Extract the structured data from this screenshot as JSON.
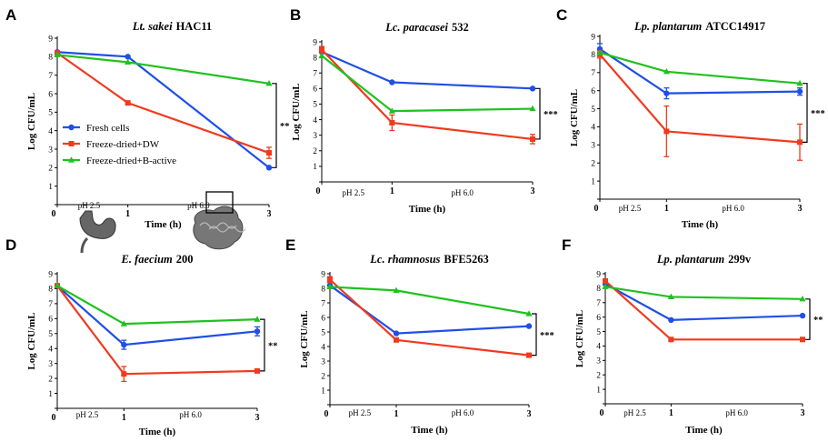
{
  "figure": {
    "x_axis_title": "Time (h)",
    "y_axis_title": "Log CFU/mL",
    "x_ticks": [
      "0",
      "1",
      "3"
    ],
    "y_ticks": [
      "1",
      "2",
      "3",
      "4",
      "5",
      "6",
      "7",
      "8",
      "9"
    ],
    "ph_labels": [
      "pH 2.5",
      "pH 6.0"
    ]
  },
  "legend": {
    "placement": "lower-left of panel A",
    "entries": [
      {
        "label": "Fresh cells",
        "color": "#1f4fe6",
        "marker": "circle"
      },
      {
        "label": "Freeze-dried+DW",
        "color": "#f03a1e",
        "marker": "square"
      },
      {
        "label": "Freeze-dried+B-active",
        "color": "#1ec21e",
        "marker": "triangle"
      }
    ]
  },
  "icons": [
    "stomach-icon",
    "intestine-icon"
  ],
  "chart_data": [
    {
      "type": "line",
      "panel": "A",
      "title_species": "Lt. sakei",
      "title_strain": "HAC11",
      "x": [
        0,
        1,
        3
      ],
      "ylim": [
        1,
        9
      ],
      "xlabel": "Time (h)",
      "ylabel": "Log CFU/mL",
      "significance": "**",
      "series": [
        {
          "name": "Fresh cells",
          "color": "#1f4fe6",
          "marker": "circle",
          "values": [
            8.25,
            8.0,
            2.0
          ],
          "errors": [
            0.1,
            0.1,
            0.1
          ]
        },
        {
          "name": "Freeze-dried+DW",
          "color": "#f03a1e",
          "marker": "square",
          "values": [
            8.2,
            5.5,
            2.8
          ],
          "errors": [
            0.1,
            0.1,
            0.3
          ]
        },
        {
          "name": "Freeze-dried+B-active",
          "color": "#1ec21e",
          "marker": "triangle",
          "values": [
            8.1,
            7.7,
            6.55
          ],
          "errors": [
            0.1,
            0.1,
            0.1
          ]
        }
      ]
    },
    {
      "type": "line",
      "panel": "B",
      "title_species": "Lc. paracasei",
      "title_strain": "532",
      "x": [
        0,
        1,
        3
      ],
      "ylim": [
        1,
        9
      ],
      "xlabel": "Time (h)",
      "ylabel": "Log CFU/mL",
      "significance": "***",
      "series": [
        {
          "name": "Fresh cells",
          "color": "#1f4fe6",
          "marker": "circle",
          "values": [
            8.35,
            6.4,
            6.0
          ],
          "errors": [
            0.1,
            0.1,
            0.1
          ]
        },
        {
          "name": "Freeze-dried+DW",
          "color": "#f03a1e",
          "marker": "square",
          "values": [
            8.5,
            3.8,
            2.75
          ],
          "errors": [
            0.2,
            0.5,
            0.3
          ]
        },
        {
          "name": "Freeze-dried+B-active",
          "color": "#1ec21e",
          "marker": "triangle",
          "values": [
            8.1,
            4.55,
            4.7
          ],
          "errors": [
            0.1,
            0.1,
            0.1
          ]
        }
      ]
    },
    {
      "type": "line",
      "panel": "C",
      "title_species": "Lp. plantarum",
      "title_strain": "ATCC14917",
      "x": [
        0,
        1,
        3
      ],
      "ylim": [
        1,
        9
      ],
      "xlabel": "Time (h)",
      "ylabel": "Log CFU/mL",
      "significance": "***",
      "series": [
        {
          "name": "Fresh cells",
          "color": "#1f4fe6",
          "marker": "circle",
          "values": [
            8.3,
            5.85,
            5.95
          ],
          "errors": [
            0.3,
            0.3,
            0.2
          ]
        },
        {
          "name": "Freeze-dried+DW",
          "color": "#f03a1e",
          "marker": "square",
          "values": [
            8.0,
            3.75,
            3.15
          ],
          "errors": [
            0.2,
            1.4,
            1.0
          ]
        },
        {
          "name": "Freeze-dried+B-active",
          "color": "#1ec21e",
          "marker": "triangle",
          "values": [
            8.1,
            7.05,
            6.4
          ],
          "errors": [
            0.1,
            0.1,
            0.1
          ]
        }
      ]
    },
    {
      "type": "line",
      "panel": "D",
      "title_species": "E. faecium",
      "title_strain": "200",
      "x": [
        0,
        1,
        3
      ],
      "ylim": [
        1,
        9
      ],
      "xlabel": "Time (h)",
      "ylabel": "Log CFU/mL",
      "significance": "**",
      "series": [
        {
          "name": "Fresh cells",
          "color": "#1f4fe6",
          "marker": "circle",
          "values": [
            8.2,
            4.25,
            5.15
          ],
          "errors": [
            0.1,
            0.3,
            0.3
          ]
        },
        {
          "name": "Freeze-dried+DW",
          "color": "#f03a1e",
          "marker": "square",
          "values": [
            8.2,
            2.3,
            2.5
          ],
          "errors": [
            0.1,
            0.5,
            0.1
          ]
        },
        {
          "name": "Freeze-dried+B-active",
          "color": "#1ec21e",
          "marker": "triangle",
          "values": [
            8.2,
            5.65,
            5.95
          ],
          "errors": [
            0.1,
            0.1,
            0.1
          ]
        }
      ]
    },
    {
      "type": "line",
      "panel": "E",
      "title_species": "Lc. rhamnosus",
      "title_strain": "BFE5263",
      "x": [
        0,
        1,
        3
      ],
      "ylim": [
        1,
        9
      ],
      "xlabel": "Time (h)",
      "ylabel": "Log CFU/mL",
      "significance": "***",
      "series": [
        {
          "name": "Fresh cells",
          "color": "#1f4fe6",
          "marker": "circle",
          "values": [
            8.2,
            4.9,
            5.4
          ],
          "errors": [
            0.1,
            0.1,
            0.1
          ]
        },
        {
          "name": "Freeze-dried+DW",
          "color": "#f03a1e",
          "marker": "square",
          "values": [
            8.6,
            4.45,
            3.4
          ],
          "errors": [
            0.2,
            0.1,
            0.1
          ]
        },
        {
          "name": "Freeze-dried+B-active",
          "color": "#1ec21e",
          "marker": "triangle",
          "values": [
            8.1,
            7.85,
            6.25
          ],
          "errors": [
            0.1,
            0.1,
            0.1
          ]
        }
      ]
    },
    {
      "type": "line",
      "panel": "F",
      "title_species": "Lp. plantarum",
      "title_strain": "299v",
      "x": [
        0,
        1,
        3
      ],
      "ylim": [
        1,
        9
      ],
      "xlabel": "Time (h)",
      "ylabel": "Log CFU/mL",
      "significance": "**",
      "series": [
        {
          "name": "Fresh cells",
          "color": "#1f4fe6",
          "marker": "circle",
          "values": [
            8.3,
            5.8,
            6.1
          ],
          "errors": [
            0.1,
            0.1,
            0.1
          ]
        },
        {
          "name": "Freeze-dried+DW",
          "color": "#f03a1e",
          "marker": "square",
          "values": [
            8.5,
            4.45,
            4.45
          ],
          "errors": [
            0.1,
            0.1,
            0.1
          ]
        },
        {
          "name": "Freeze-dried+B-active",
          "color": "#1ec21e",
          "marker": "triangle",
          "values": [
            8.1,
            7.4,
            7.25
          ],
          "errors": [
            0.1,
            0.1,
            0.1
          ]
        }
      ]
    }
  ]
}
